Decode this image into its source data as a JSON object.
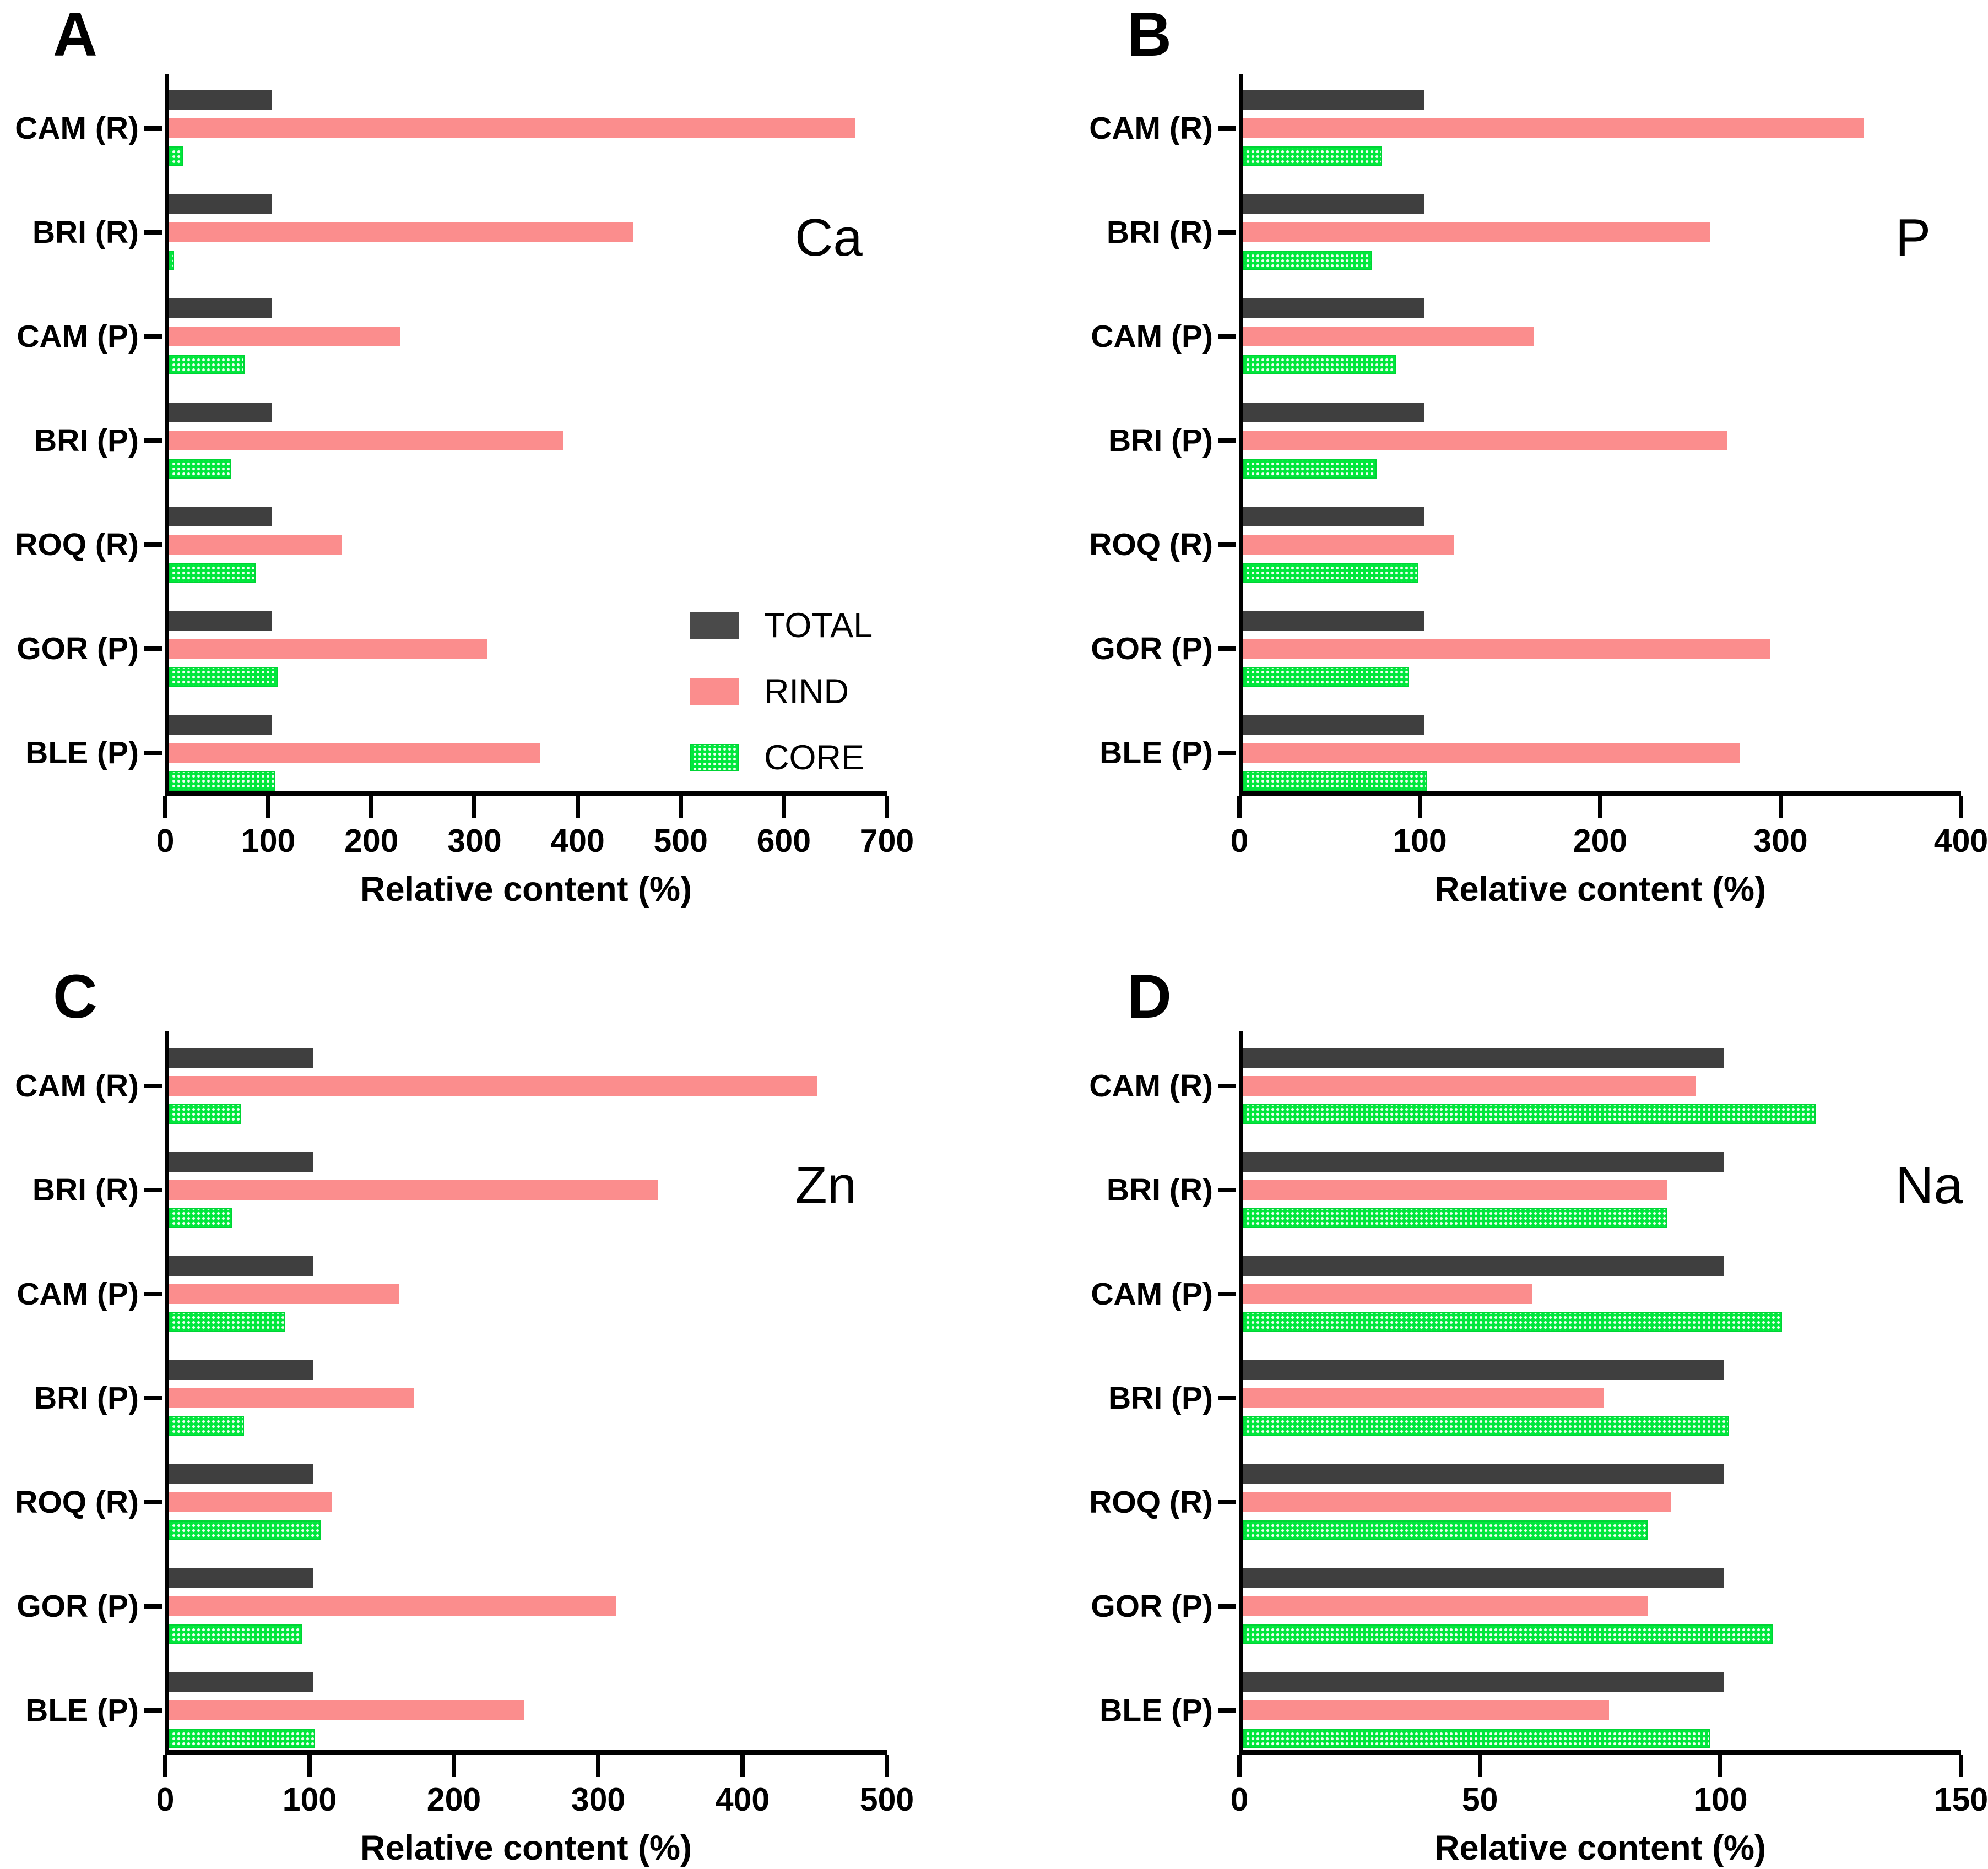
{
  "categories": [
    "CAM (R)",
    "BRI (R)",
    "CAM (P)",
    "BRI (P)",
    "ROQ (R)",
    "GOR (P)",
    "BLE (P)"
  ],
  "xlabel": "Relative content (%)",
  "legend": {
    "position": "inside panel A, middle right",
    "items": [
      {
        "label": "TOTAL",
        "color": "#3f3f3f",
        "pattern": "solid"
      },
      {
        "label": "RIND",
        "color": "#fb8d8d",
        "pattern": "solid"
      },
      {
        "label": "CORE",
        "color": "#00e73c",
        "pattern": "white-dot-grid"
      }
    ]
  },
  "chart_data": [
    {
      "type": "bar",
      "orientation": "horizontal",
      "panel": "A",
      "title": "Ca",
      "xlabel": "Relative content (%)",
      "xlim": [
        0,
        700
      ],
      "xticks": [
        0,
        100,
        200,
        300,
        400,
        500,
        600,
        700
      ],
      "grid": false,
      "categories": [
        "CAM (R)",
        "BRI (R)",
        "CAM (P)",
        "BRI (P)",
        "ROQ (R)",
        "GOR (P)",
        "BLE (P)"
      ],
      "series": [
        {
          "name": "TOTAL",
          "values": [
            100,
            100,
            100,
            100,
            100,
            100,
            100
          ]
        },
        {
          "name": "RIND",
          "values": [
            665,
            450,
            224,
            382,
            168,
            309,
            360
          ]
        },
        {
          "name": "CORE",
          "values": [
            14,
            5,
            73,
            60,
            84,
            105,
            103
          ]
        }
      ],
      "legend_position": "inside-middle-right"
    },
    {
      "type": "bar",
      "orientation": "horizontal",
      "panel": "B",
      "title": "P",
      "xlabel": "Relative content (%)",
      "xlim": [
        0,
        400
      ],
      "xticks": [
        0,
        100,
        200,
        300,
        400
      ],
      "grid": false,
      "categories": [
        "CAM (R)",
        "BRI (R)",
        "CAM (P)",
        "BRI (P)",
        "ROQ (R)",
        "GOR (P)",
        "BLE (P)"
      ],
      "series": [
        {
          "name": "TOTAL",
          "values": [
            100,
            100,
            100,
            100,
            100,
            100,
            100
          ]
        },
        {
          "name": "RIND",
          "values": [
            344,
            259,
            161,
            268,
            117,
            292,
            275
          ]
        },
        {
          "name": "CORE",
          "values": [
            77,
            71,
            85,
            74,
            97,
            92,
            102
          ]
        }
      ],
      "legend_position": "none"
    },
    {
      "type": "bar",
      "orientation": "horizontal",
      "panel": "C",
      "title": "Zn",
      "xlabel": "Relative content (%)",
      "xlim": [
        0,
        500
      ],
      "xticks": [
        0,
        100,
        200,
        300,
        400,
        500
      ],
      "grid": false,
      "categories": [
        "CAM (R)",
        "BRI (R)",
        "CAM (P)",
        "BRI (P)",
        "ROQ (R)",
        "GOR (P)",
        "BLE (P)"
      ],
      "series": [
        {
          "name": "TOTAL",
          "values": [
            100,
            100,
            100,
            100,
            100,
            100,
            100
          ]
        },
        {
          "name": "RIND",
          "values": [
            449,
            339,
            159,
            170,
            113,
            310,
            246
          ]
        },
        {
          "name": "CORE",
          "values": [
            50,
            44,
            80,
            52,
            105,
            92,
            101
          ]
        }
      ],
      "legend_position": "none"
    },
    {
      "type": "bar",
      "orientation": "horizontal",
      "panel": "D",
      "title": "Na",
      "xlabel": "Relative content (%)",
      "xlim": [
        0,
        150
      ],
      "xticks": [
        0,
        50,
        100,
        150
      ],
      "grid": false,
      "categories": [
        "CAM (R)",
        "BRI (R)",
        "CAM (P)",
        "BRI (P)",
        "ROQ (R)",
        "GOR (P)",
        "BLE (P)"
      ],
      "series": [
        {
          "name": "TOTAL",
          "values": [
            100,
            100,
            100,
            100,
            100,
            100,
            100
          ]
        },
        {
          "name": "RIND",
          "values": [
            94,
            88,
            60,
            75,
            89,
            84,
            76
          ]
        },
        {
          "name": "CORE",
          "values": [
            119,
            88,
            112,
            101,
            84,
            110,
            97
          ]
        }
      ],
      "legend_position": "none"
    }
  ]
}
